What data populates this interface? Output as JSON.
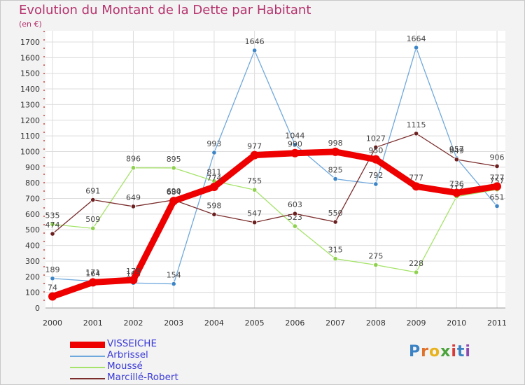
{
  "title": "Evolution du Montant de la Dette par Habitant",
  "subtitle": "(en €)",
  "logo": "Proxiti",
  "colors": {
    "background": "#f3f3f3",
    "grid": "#dcdcdc",
    "title": "#b5326d",
    "legend_text": "#3b3bd8",
    "axis_text": "#333333"
  },
  "chart_data": {
    "type": "line",
    "title": "Evolution du Montant de la Dette par Habitant",
    "subtitle": "(en €)",
    "xlabel": "",
    "ylabel": "",
    "categories": [
      "2000",
      "2001",
      "2002",
      "2003",
      "2004",
      "2005",
      "2006",
      "2007",
      "2008",
      "2009",
      "2010",
      "2011"
    ],
    "ylim": [
      0,
      1700
    ],
    "yticks": [
      0,
      100,
      200,
      300,
      400,
      500,
      600,
      700,
      800,
      900,
      1000,
      1100,
      1200,
      1300,
      1400,
      1500,
      1600,
      1700
    ],
    "grid": true,
    "legend": "bottom-left",
    "series": [
      {
        "name": "VISSEICHE",
        "color": "#ee0000",
        "marker": "#ee0000",
        "emphasis": true,
        "values": [
          74,
          164,
          179,
          684,
          774,
          977,
          990,
          998,
          950,
          777,
          736,
          777
        ]
      },
      {
        "name": "Arbrissel",
        "color": "#6fa8dc",
        "marker": "#3d85c6",
        "emphasis": false,
        "values": [
          189,
          171,
          160,
          154,
          993,
          1646,
          1044,
          825,
          792,
          1664,
          957,
          651
        ]
      },
      {
        "name": "Moussé",
        "color": "#a6e36a",
        "marker": "#8fd14f",
        "emphasis": false,
        "values": [
          535,
          509,
          896,
          895,
          811,
          755,
          523,
          315,
          275,
          228,
          712,
          757
        ]
      },
      {
        "name": "Marcillé-Robert",
        "color": "#7b2d2d",
        "marker": "#6b1f1f",
        "emphasis": false,
        "values": [
          474,
          691,
          649,
          690,
          598,
          547,
          603,
          550,
          1027,
          1115,
          949,
          906
        ]
      }
    ]
  }
}
